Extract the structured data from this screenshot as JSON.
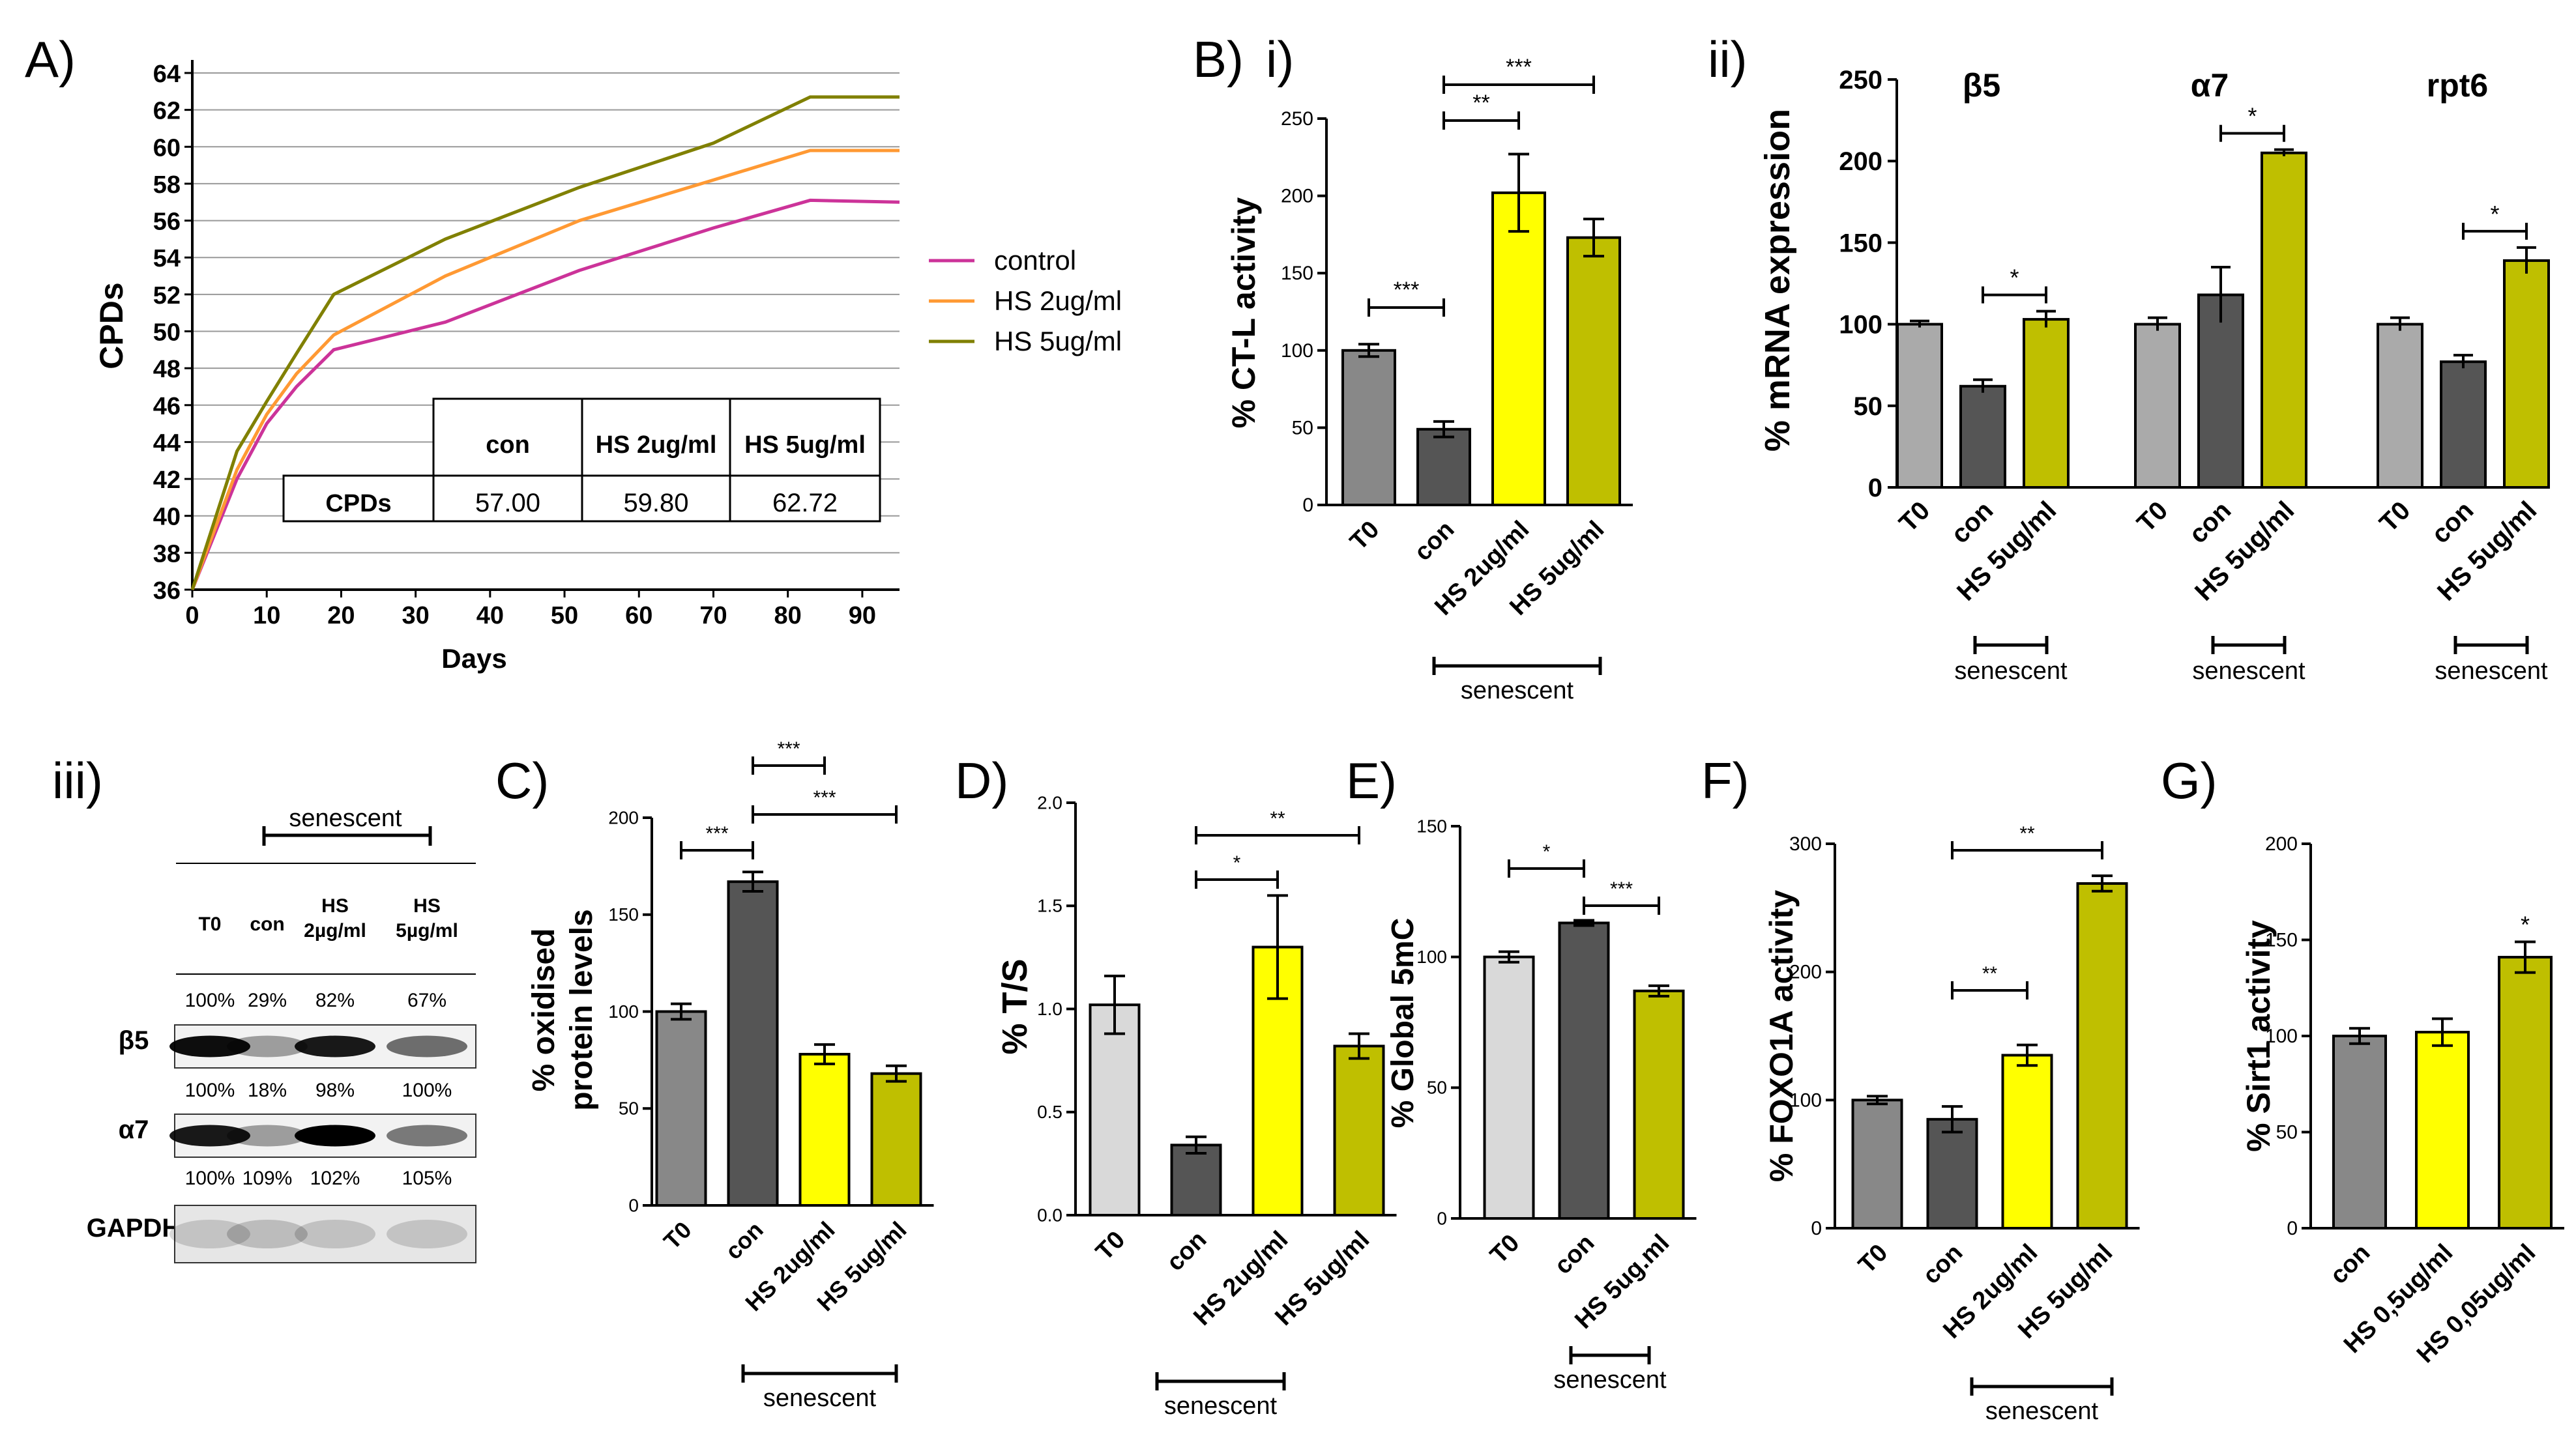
{
  "figure": {
    "panel_labels": {
      "A": "A)",
      "Bi": "B)",
      "Bi2": "i)",
      "Bii": "ii)",
      "Biii": "iii)",
      "C": "C)",
      "D": "D)",
      "E": "E)",
      "F": "F)",
      "G": "G)"
    }
  },
  "colors": {
    "t0_gray": "#888888",
    "con_dark": "#555555",
    "light_gray": "#d9d9d9",
    "mid_gray": "#aaaaaa",
    "yellow": "#ffff00",
    "olive": "#bfbf00",
    "control_line": "#cc3399",
    "hs2_line": "#ff9933",
    "hs5_line": "#808000"
  },
  "chart_data": [
    {
      "id": "A",
      "type": "line",
      "xlabel": "Days",
      "ylabel": "CPDs",
      "xlim": [
        0,
        95
      ],
      "ylim": [
        36,
        64
      ],
      "xticks": [
        "0",
        "10",
        "20",
        "30",
        "40",
        "50",
        "60",
        "70",
        "80",
        "90"
      ],
      "yticks": [
        "36",
        "38",
        "40",
        "42",
        "44",
        "46",
        "48",
        "50",
        "52",
        "54",
        "56",
        "58",
        "60",
        "62",
        "64"
      ],
      "series": [
        {
          "name": "control",
          "color": "#cc3399",
          "x": [
            0,
            6,
            10,
            14,
            19,
            34,
            52,
            70,
            83,
            95
          ],
          "y": [
            36,
            42,
            45,
            47,
            49,
            50.5,
            53.3,
            55.6,
            57.1,
            57
          ]
        },
        {
          "name": "HS 2ug/ml",
          "color": "#ff9933",
          "x": [
            0,
            6,
            10,
            14,
            19,
            34,
            52,
            70,
            83,
            95
          ],
          "y": [
            36,
            42.5,
            45.5,
            47.7,
            49.8,
            53,
            56,
            58.2,
            59.8,
            59.8
          ]
        },
        {
          "name": "HS 5ug/ml",
          "color": "#808000",
          "x": [
            0,
            6,
            10,
            14,
            19,
            34,
            52,
            70,
            83,
            95
          ],
          "y": [
            36,
            43.5,
            46.2,
            48.8,
            52,
            55,
            57.8,
            60.2,
            62.7,
            62.7
          ]
        }
      ],
      "table": {
        "headers": [
          "",
          "con",
          "HS 2ug/ml",
          "HS 5ug/ml"
        ],
        "row_label": "CPDs",
        "values": [
          "57.00",
          "59.80",
          "62.72"
        ]
      }
    },
    {
      "id": "Bi",
      "type": "bar",
      "ylabel": "% CT-L activity",
      "ylim": [
        0,
        250
      ],
      "yticks": [
        "0",
        "50",
        "100",
        "150",
        "200",
        "250"
      ],
      "categories": [
        "T0",
        "con",
        "HS 2ug/ml",
        "HS 5ug/ml"
      ],
      "values": [
        100,
        49,
        202,
        173
      ],
      "errors": [
        4,
        5,
        25,
        12
      ],
      "colors": [
        "#888888",
        "#555555",
        "#ffff00",
        "#bfbf00"
      ],
      "group_label": "senescent",
      "significance": [
        {
          "from": 0,
          "to": 1,
          "label": "***"
        },
        {
          "from": 1,
          "to": 2,
          "label": "**"
        },
        {
          "from": 1,
          "to": 3,
          "label": "***"
        }
      ]
    },
    {
      "id": "Bii",
      "type": "bar",
      "ylabel": "% mRNA expression",
      "ylim": [
        0,
        250
      ],
      "yticks": [
        "0",
        "50",
        "100",
        "150",
        "200",
        "250"
      ],
      "groups": [
        {
          "title": "β5",
          "categories": [
            "T0",
            "con",
            "HS 5ug/ml"
          ],
          "values": [
            100,
            62,
            103
          ],
          "errors": [
            2,
            4,
            5
          ],
          "sig": "*"
        },
        {
          "title": "α7",
          "categories": [
            "T0",
            "con",
            "HS 5ug/ml"
          ],
          "values": [
            100,
            118,
            205
          ],
          "errors": [
            4,
            17,
            2
          ],
          "sig": "*"
        },
        {
          "title": "rpt6",
          "categories": [
            "T0",
            "con",
            "HS 5ug/ml"
          ],
          "values": [
            100,
            77,
            139
          ],
          "errors": [
            4,
            4,
            8
          ],
          "sig": "*"
        }
      ],
      "colors": [
        "#aaaaaa",
        "#555555",
        "#bfbf00"
      ],
      "group_label": "senescent"
    },
    {
      "id": "C",
      "type": "bar",
      "ylabel": "% oxidised protein levels",
      "ylabel_lines": [
        "% oxidised",
        "protein levels"
      ],
      "ylim": [
        0,
        200
      ],
      "yticks": [
        "0",
        "50",
        "100",
        "150",
        "200"
      ],
      "categories": [
        "T0",
        "con",
        "HS 2ug/ml",
        "HS 5ug/ml"
      ],
      "values": [
        100,
        167,
        78,
        68
      ],
      "errors": [
        4,
        5,
        5,
        4
      ],
      "colors": [
        "#888888",
        "#555555",
        "#ffff00",
        "#bfbf00"
      ],
      "group_label": "senescent",
      "significance": [
        {
          "from": 0,
          "to": 1,
          "label": "***"
        },
        {
          "from": 1,
          "to": 2,
          "label": "***"
        },
        {
          "from": 1,
          "to": 3,
          "label": "***"
        }
      ]
    },
    {
      "id": "D",
      "type": "bar",
      "ylabel": "% T/S",
      "ylim": [
        0,
        2
      ],
      "yticks": [
        "0.0",
        "0.5",
        "1.0",
        "1.5",
        "2.0"
      ],
      "categories": [
        "T0",
        "con",
        "HS 2ug/ml",
        "HS 5ug/ml"
      ],
      "values": [
        1.02,
        0.34,
        1.3,
        0.82
      ],
      "errors": [
        0.14,
        0.04,
        0.25,
        0.06
      ],
      "colors": [
        "#d9d9d9",
        "#555555",
        "#ffff00",
        "#bfbf00"
      ],
      "group_label": "senescent",
      "significance": [
        {
          "from": 1,
          "to": 2,
          "label": "*"
        },
        {
          "from": 1,
          "to": 3,
          "label": "**"
        }
      ]
    },
    {
      "id": "E",
      "type": "bar",
      "ylabel": "% Global 5mC",
      "ylim": [
        0,
        150
      ],
      "yticks": [
        "0",
        "50",
        "100",
        "150"
      ],
      "categories": [
        "T0",
        "con",
        "HS 5ug.ml"
      ],
      "values": [
        100,
        113,
        87
      ],
      "errors": [
        2,
        1,
        2
      ],
      "colors": [
        "#d9d9d9",
        "#555555",
        "#bfbf00"
      ],
      "group_label": "senescent",
      "significance": [
        {
          "from": 0,
          "to": 1,
          "label": "*"
        },
        {
          "from": 1,
          "to": 2,
          "label": "***"
        }
      ]
    },
    {
      "id": "F",
      "type": "bar",
      "ylabel": "% FOXO1A activity",
      "ylim": [
        0,
        300
      ],
      "yticks": [
        "0",
        "100",
        "200",
        "300"
      ],
      "categories": [
        "T0",
        "con",
        "HS 2ug/ml",
        "HS 5ug/ml"
      ],
      "values": [
        100,
        85,
        135,
        269
      ],
      "errors": [
        3,
        10,
        8,
        6
      ],
      "colors": [
        "#888888",
        "#555555",
        "#ffff00",
        "#bfbf00"
      ],
      "group_label": "senescent",
      "significance": [
        {
          "from": 1,
          "to": 2,
          "label": "**"
        },
        {
          "from": 1,
          "to": 3,
          "label": "**"
        }
      ]
    },
    {
      "id": "G",
      "type": "bar",
      "ylabel": "% Sirt1 activity",
      "ylim": [
        0,
        200
      ],
      "yticks": [
        "0",
        "50",
        "100",
        "150",
        "200"
      ],
      "categories": [
        "con",
        "HS 0,5ug/ml",
        "HS 0,05ug/ml"
      ],
      "values": [
        100,
        102,
        141
      ],
      "errors": [
        4,
        7,
        8
      ],
      "colors": [
        "#888888",
        "#ffff00",
        "#bfbf00"
      ],
      "single_stars": [
        {
          "index": 2,
          "label": "*"
        }
      ]
    }
  ],
  "western": {
    "senescent_label": "senescent",
    "lanes": [
      "T0",
      "con",
      "HS\n2µg/ml",
      "HS\n5µg/ml"
    ],
    "bands": [
      {
        "label": "β5",
        "percents": [
          "100%",
          "29%",
          "82%",
          "67%"
        ]
      },
      {
        "label": "α7",
        "percents": [
          "100%",
          "18%",
          "98%",
          "100%"
        ]
      },
      {
        "label": "GAPDH",
        "percents": [
          "100%",
          "109%",
          "102%",
          "105%"
        ]
      }
    ]
  }
}
